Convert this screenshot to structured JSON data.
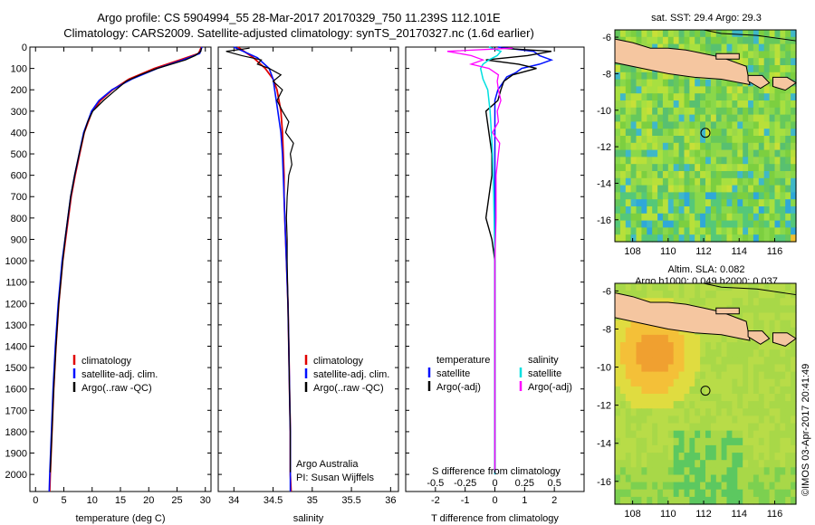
{
  "header": {
    "line1": "Argo profile: CS 5904994_55 28-Mar-2017 20170329_750 11.239S 112.101E",
    "line2": "Climatology: CARS2009. Satellite-adjusted climatology: synTS_20170327.nc (1.6d earlier)"
  },
  "colors": {
    "climatology": "#e00000",
    "satellite": "#0010ff",
    "argo": "#000000",
    "sat_salinity": "#00e0e0",
    "argo_salinity": "#ff00ff",
    "land": "#f5c6a0"
  },
  "map_top": {
    "title": "sat. SST: 29.4  Argo: 29.3",
    "xticks": [
      "108",
      "110",
      "112",
      "114",
      "116"
    ],
    "yticks": [
      "-6",
      "-8",
      "-10",
      "-12",
      "-14",
      "-16"
    ],
    "xlim": [
      107,
      117.2
    ],
    "ylim": [
      -17.2,
      -5.6
    ],
    "argo_position": [
      112.101,
      -11.239
    ]
  },
  "map_bottom": {
    "title1": "Altim. SLA: 0.082",
    "title2": "Argo h1000: 0.049 h2000: 0.037",
    "xticks": [
      "108",
      "110",
      "112",
      "114",
      "116"
    ],
    "yticks": [
      "-6",
      "-8",
      "-10",
      "-12",
      "-14",
      "-16"
    ],
    "xlim": [
      107,
      117.2
    ],
    "ylim": [
      -17.2,
      -5.6
    ],
    "argo_position": [
      112.101,
      -11.239
    ]
  },
  "credit": "©IMOS 03-Apr-2017 20:41:49",
  "chart_data": [
    {
      "type": "line",
      "xlabel": "temperature (deg C)",
      "ylabel": "",
      "xlim": [
        -1,
        31
      ],
      "ylim": [
        2080,
        0
      ],
      "xticks": [
        "0",
        "5",
        "10",
        "15",
        "20",
        "25",
        "30"
      ],
      "yticks": [
        "0",
        "100",
        "200",
        "300",
        "400",
        "500",
        "600",
        "700",
        "800",
        "900",
        "1000",
        "1100",
        "1200",
        "1300",
        "1400",
        "1500",
        "1600",
        "1700",
        "1800",
        "1900",
        "2000"
      ],
      "legend": [
        "climatology",
        "satellite-adj. clim.",
        "Argo(..raw -QC)"
      ],
      "series": [
        {
          "name": "climatology",
          "depth": [
            0,
            30,
            60,
            100,
            150,
            200,
            250,
            300,
            400,
            500,
            600,
            700,
            800,
            900,
            1000,
            1200,
            1400,
            1600,
            1800,
            2000,
            2080
          ],
          "values": [
            29.3,
            28.8,
            25.5,
            21,
            16.5,
            13.6,
            11.5,
            10,
            8.6,
            7.8,
            7,
            6.3,
            5.8,
            5.3,
            4.8,
            4.1,
            3.6,
            3.2,
            2.9,
            2.6,
            2.5
          ]
        },
        {
          "name": "satellite-adj. clim.",
          "depth": [
            0,
            30,
            60,
            100,
            150,
            200,
            250,
            300,
            400,
            500,
            600,
            700,
            800,
            900,
            1000,
            1200,
            1400,
            1600,
            1800,
            2000,
            2080
          ],
          "values": [
            29.4,
            29,
            26,
            21.5,
            17,
            13.5,
            11.2,
            9.9,
            8.5,
            7.7,
            6.9,
            6.2,
            5.7,
            5.2,
            4.7,
            4,
            3.5,
            3.1,
            2.8,
            2.5,
            2.4
          ]
        },
        {
          "name": "Argo(..raw -QC)",
          "depth": [
            5,
            20,
            40,
            60,
            80,
            100,
            130,
            160,
            200,
            250,
            300,
            350,
            400,
            500,
            600,
            700,
            800,
            900,
            1000,
            1200,
            1400,
            1600,
            1800,
            1990
          ],
          "values": [
            29.3,
            29.2,
            28.2,
            26.5,
            24,
            21.5,
            18.5,
            16,
            14.2,
            12,
            10.1,
            9.2,
            8.6,
            7.7,
            6.9,
            6.2,
            5.7,
            5.2,
            4.8,
            4.1,
            3.6,
            3.2,
            2.9,
            2.6
          ]
        }
      ]
    },
    {
      "type": "line",
      "xlabel": "salinity",
      "xlim": [
        33.8,
        36.1
      ],
      "ylim": [
        2080,
        0
      ],
      "xticks": [
        "34",
        "34.5",
        "35",
        "35.5",
        "36"
      ],
      "legend": [
        "climatology",
        "satellite-adj. clim.",
        "Argo(..raw -QC)"
      ],
      "annotation": [
        "Argo Australia",
        "PI: Susan Wijffels"
      ],
      "series": [
        {
          "name": "climatology",
          "depth": [
            0,
            50,
            100,
            150,
            200,
            300,
            400,
            500,
            600,
            700,
            800,
            900,
            1000,
            1200,
            1400,
            1600,
            1800,
            2000,
            2080
          ],
          "values": [
            34.05,
            34.25,
            34.4,
            34.5,
            34.55,
            34.6,
            34.62,
            34.63,
            34.64,
            34.64,
            34.65,
            34.66,
            34.67,
            34.69,
            34.7,
            34.71,
            34.72,
            34.72,
            34.73
          ]
        },
        {
          "name": "satellite-adj. clim.",
          "depth": [
            0,
            50,
            100,
            150,
            200,
            300,
            400,
            500,
            600,
            700,
            800,
            900,
            1000,
            1200,
            1400,
            1600,
            1800,
            2000,
            2080
          ],
          "values": [
            34.0,
            34.3,
            34.45,
            34.5,
            34.52,
            34.56,
            34.6,
            34.62,
            34.63,
            34.64,
            34.65,
            34.66,
            34.67,
            34.69,
            34.7,
            34.71,
            34.72,
            34.72,
            34.72
          ]
        },
        {
          "name": "Argo(..raw -QC)",
          "depth": [
            5,
            20,
            40,
            60,
            80,
            100,
            130,
            160,
            200,
            250,
            300,
            350,
            400,
            450,
            500,
            550,
            600,
            700,
            800,
            900,
            1000,
            1200,
            1400,
            1600,
            1800,
            1990
          ],
          "values": [
            34.2,
            33.9,
            34.1,
            34.35,
            34.3,
            34.45,
            34.6,
            34.5,
            34.62,
            34.55,
            34.62,
            34.7,
            34.66,
            34.76,
            34.72,
            34.74,
            34.7,
            34.68,
            34.67,
            34.68,
            34.68,
            34.69,
            34.7,
            34.71,
            34.72,
            34.72
          ]
        }
      ]
    },
    {
      "type": "line",
      "title": "",
      "xlabel": "T difference from climatology",
      "xlabel_top": "S difference from climatology",
      "xlim": [
        -3,
        3
      ],
      "ylim": [
        2080,
        0
      ],
      "xticks": [
        "-2",
        "-1",
        "0",
        "1",
        "2"
      ],
      "xticks_salinity": [
        "-0.5",
        "-0.25",
        "0",
        "0.25",
        "0.5"
      ],
      "legend": {
        "temperature_title": "temperature",
        "salinity_title": "salinity",
        "items": [
          "satellite",
          "Argo(-adj)",
          "satellite",
          "Argo(-adj)"
        ]
      },
      "series": [
        {
          "name": "satellite",
          "depth": [
            0,
            20,
            40,
            60,
            80,
            100,
            120,
            140,
            160,
            200,
            250,
            300,
            400,
            600,
            800,
            1000,
            1500,
            2000
          ],
          "values": [
            0.1,
            1.3,
            1.5,
            1.9,
            1.5,
            0.9,
            0.7,
            0.4,
            0.3,
            0.1,
            0,
            0,
            0,
            0,
            0,
            0,
            0,
            0
          ]
        },
        {
          "name": "Argo(-adj)",
          "depth": [
            5,
            20,
            40,
            60,
            80,
            100,
            130,
            160,
            200,
            250,
            300,
            400,
            500,
            600,
            700,
            800,
            900,
            1000,
            1200,
            1500,
            1800,
            1990
          ],
          "values": [
            0.2,
            1.9,
            1.1,
            -0.3,
            0.8,
            1.4,
            0.6,
            0.3,
            0.2,
            0.1,
            -0.3,
            -0.2,
            -0.1,
            -0.1,
            -0.2,
            -0.3,
            -0.1,
            0,
            0,
            0,
            0,
            0
          ]
        },
        {
          "name": "satellite",
          "depth": [
            0,
            20,
            40,
            60,
            80,
            100,
            150,
            200,
            300,
            400,
            500,
            700,
            1000,
            1500,
            2000
          ],
          "values": [
            -0.05,
            0.05,
            0.02,
            -0.05,
            -0.1,
            -0.12,
            -0.1,
            -0.06,
            -0.04,
            -0.03,
            -0.02,
            -0.01,
            0,
            0,
            0
          ]
        },
        {
          "name": "Argo(-adj)",
          "depth": [
            5,
            20,
            40,
            60,
            80,
            100,
            130,
            160,
            200,
            250,
            300,
            350,
            400,
            450,
            500,
            600,
            800,
            1000,
            1500,
            1990
          ],
          "values": [
            0.15,
            -0.4,
            -0.2,
            -0.1,
            -0.2,
            -0.05,
            0.03,
            0.02,
            0.03,
            0.05,
            0.02,
            0.03,
            -0.02,
            0.04,
            0.03,
            0.01,
            0.01,
            0,
            0,
            0
          ]
        }
      ]
    }
  ]
}
